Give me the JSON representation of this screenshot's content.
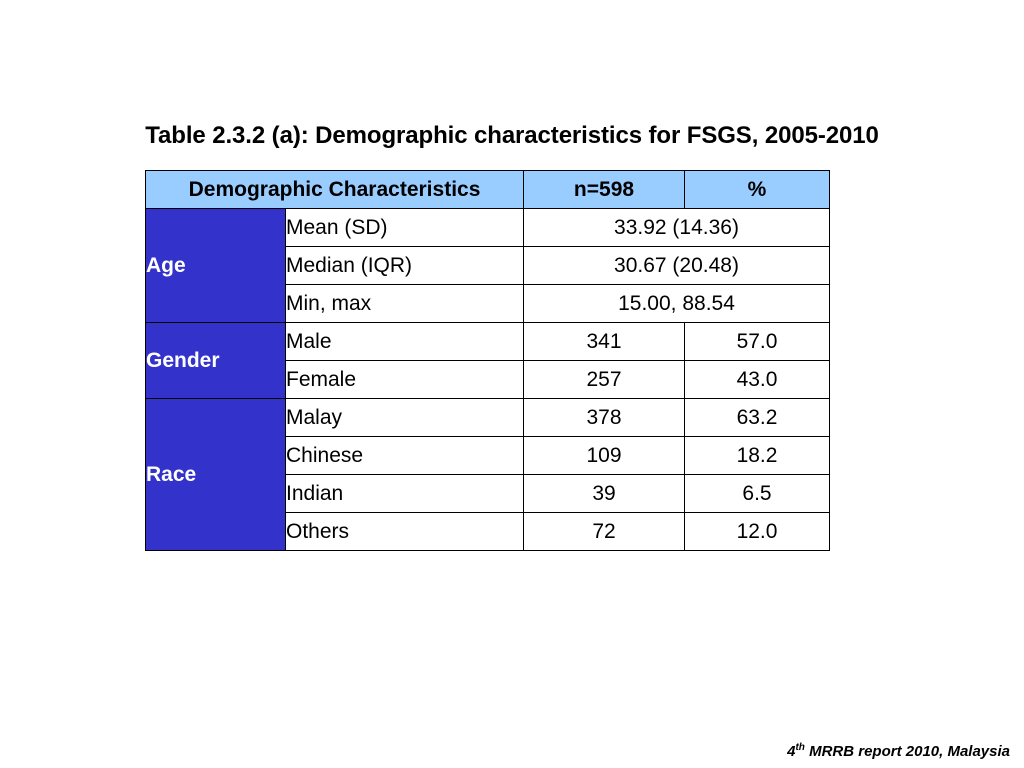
{
  "title": "Table 2.3.2 (a): Demographic characteristics for FSGS, 2005-2010",
  "headers": {
    "characteristics": "Demographic Characteristics",
    "n": "n=598",
    "pct": "%"
  },
  "age": {
    "label": "Age",
    "mean_label": "Mean (SD)",
    "mean_value": "33.92 (14.36)",
    "median_label": "Median (IQR)",
    "median_value": "30.67 (20.48)",
    "minmax_label": "Min, max",
    "minmax_value": "15.00, 88.54"
  },
  "gender": {
    "label": "Gender",
    "rows": [
      {
        "label": "Male",
        "n": "341",
        "pct": "57.0"
      },
      {
        "label": "Female",
        "n": "257",
        "pct": "43.0"
      }
    ]
  },
  "race": {
    "label": "Race",
    "rows": [
      {
        "label": "Malay",
        "n": "378",
        "pct": "63.2"
      },
      {
        "label": "Chinese",
        "n": "109",
        "pct": "18.2"
      },
      {
        "label": "Indian",
        "n": "39",
        "pct": "6.5"
      },
      {
        "label": "Others",
        "n": "72",
        "pct": "12.0"
      }
    ]
  },
  "footer": {
    "num": "4",
    "sup": "th",
    "text": " MRRB report 2010, Malaysia"
  },
  "colors": {
    "header_bg": "#99ccff",
    "group_bg": "#3333cc",
    "group_text": "#ffffff"
  }
}
